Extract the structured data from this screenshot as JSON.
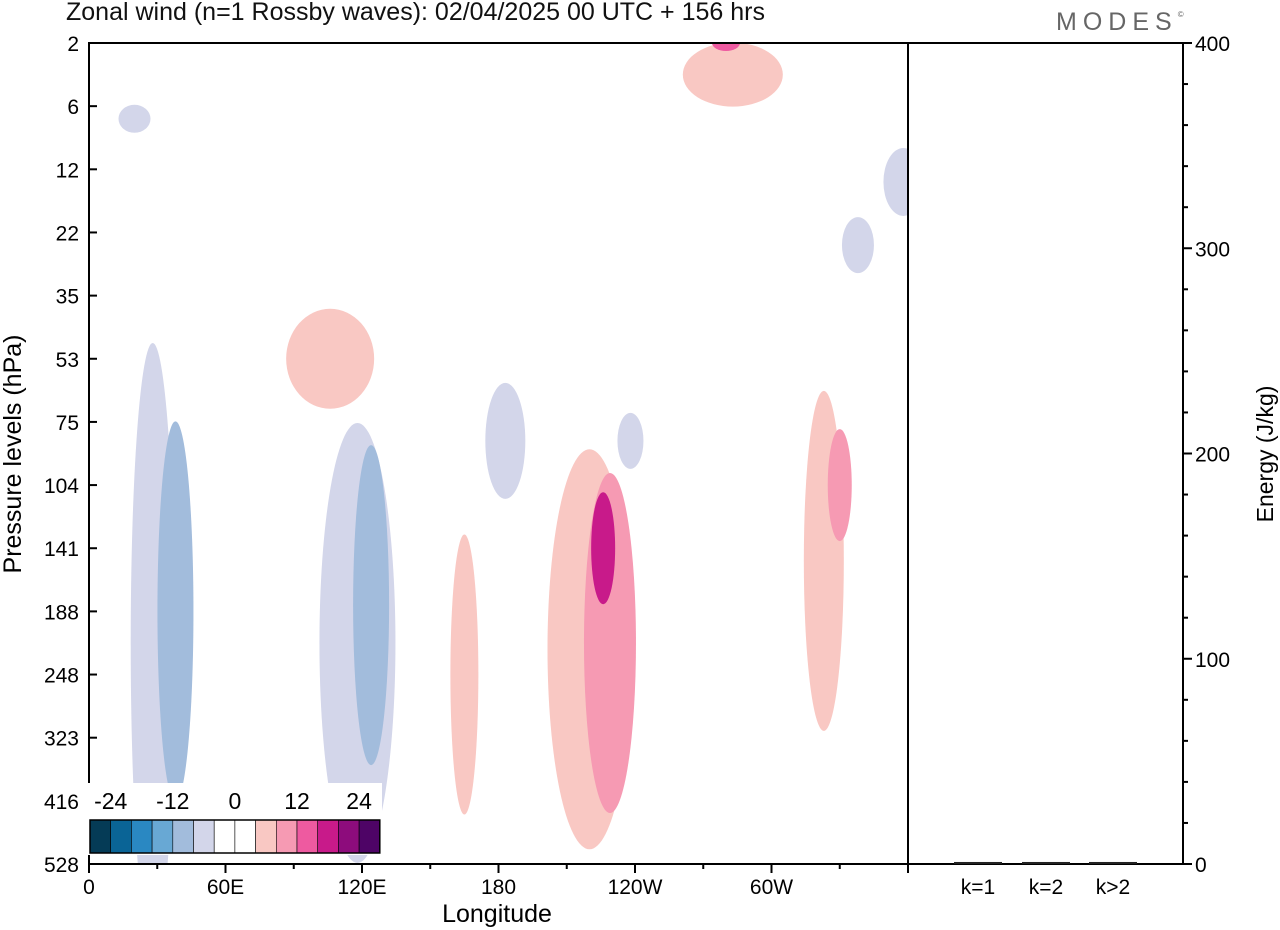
{
  "title": "Zonal wind (n=1 Rossby waves):  02/04/2025  00 UTC  + 156 hrs",
  "brand": "MODES",
  "brand_mark": "©",
  "chart_data": [
    {
      "type": "heatmap",
      "xlabel": "Longitude",
      "ylabel": "Pressure levels (hPa)",
      "x_ticks": [
        "0",
        "60E",
        "120E",
        "180",
        "120W",
        "60W"
      ],
      "y_ticks": [
        "2",
        "6",
        "12",
        "22",
        "35",
        "53",
        "75",
        "104",
        "141",
        "188",
        "248",
        "323",
        "416",
        "528"
      ],
      "colorbar": {
        "labels": [
          "-24",
          "-12",
          "0",
          "12",
          "24"
        ],
        "colors": [
          "#053b56",
          "#0a6496",
          "#2a88c2",
          "#68a8d4",
          "#a2bcdc",
          "#d3d6ea",
          "#ffffff",
          "#ffffff",
          "#f9c8c3",
          "#f69ab3",
          "#ee5aa0",
          "#c81a8a",
          "#8d0c7c",
          "#4e0466"
        ]
      },
      "blobs": [
        {
          "sign": "negative",
          "level": -4,
          "lon": 20,
          "lev": 1.2
        },
        {
          "sign": "negative",
          "level": -4,
          "lon": 358,
          "lev": 2.2
        },
        {
          "sign": "negative",
          "level": -4,
          "lon": 338,
          "lev": 3.2
        },
        {
          "sign": "negative",
          "level": -4,
          "lon": 28,
          "lev": 9.5
        },
        {
          "sign": "negative",
          "level": -8,
          "lon": 38,
          "lev": 9.0
        },
        {
          "sign": "negative",
          "level": -4,
          "lon": 118,
          "lev": 9.5
        },
        {
          "sign": "negative",
          "level": -8,
          "lon": 124,
          "lev": 8.9
        },
        {
          "sign": "negative",
          "level": -4,
          "lon": 183,
          "lev": 6.3
        },
        {
          "sign": "negative",
          "level": -4,
          "lon": 238,
          "lev": 6.3
        },
        {
          "sign": "positive",
          "level": 4,
          "lon": 106,
          "lev": 5.0
        },
        {
          "sign": "positive",
          "level": 4,
          "lon": 165,
          "lev": 10.0
        },
        {
          "sign": "positive",
          "level": 4,
          "lon": 220,
          "lev": 9.6
        },
        {
          "sign": "positive",
          "level": 8,
          "lon": 229,
          "lev": 9.5
        },
        {
          "sign": "positive",
          "level": 16,
          "lon": 226,
          "lev": 8.0
        },
        {
          "sign": "positive",
          "level": 4,
          "lon": 283,
          "lev": 0.5
        },
        {
          "sign": "positive",
          "level": 12,
          "lon": 280,
          "lev": 0.0
        },
        {
          "sign": "positive",
          "level": 4,
          "lon": 323,
          "lev": 8.2
        },
        {
          "sign": "positive",
          "level": 8,
          "lon": 330,
          "lev": 7.0
        }
      ]
    },
    {
      "type": "bar",
      "ylabel": "Energy (J/kg)",
      "categories": [
        "k=1",
        "k=2",
        "k>2"
      ],
      "values": [
        0.5,
        0.5,
        0.5
      ],
      "ylim": [
        0,
        400
      ],
      "y_ticks": [
        "0",
        "100",
        "200",
        "300",
        "400"
      ]
    }
  ]
}
